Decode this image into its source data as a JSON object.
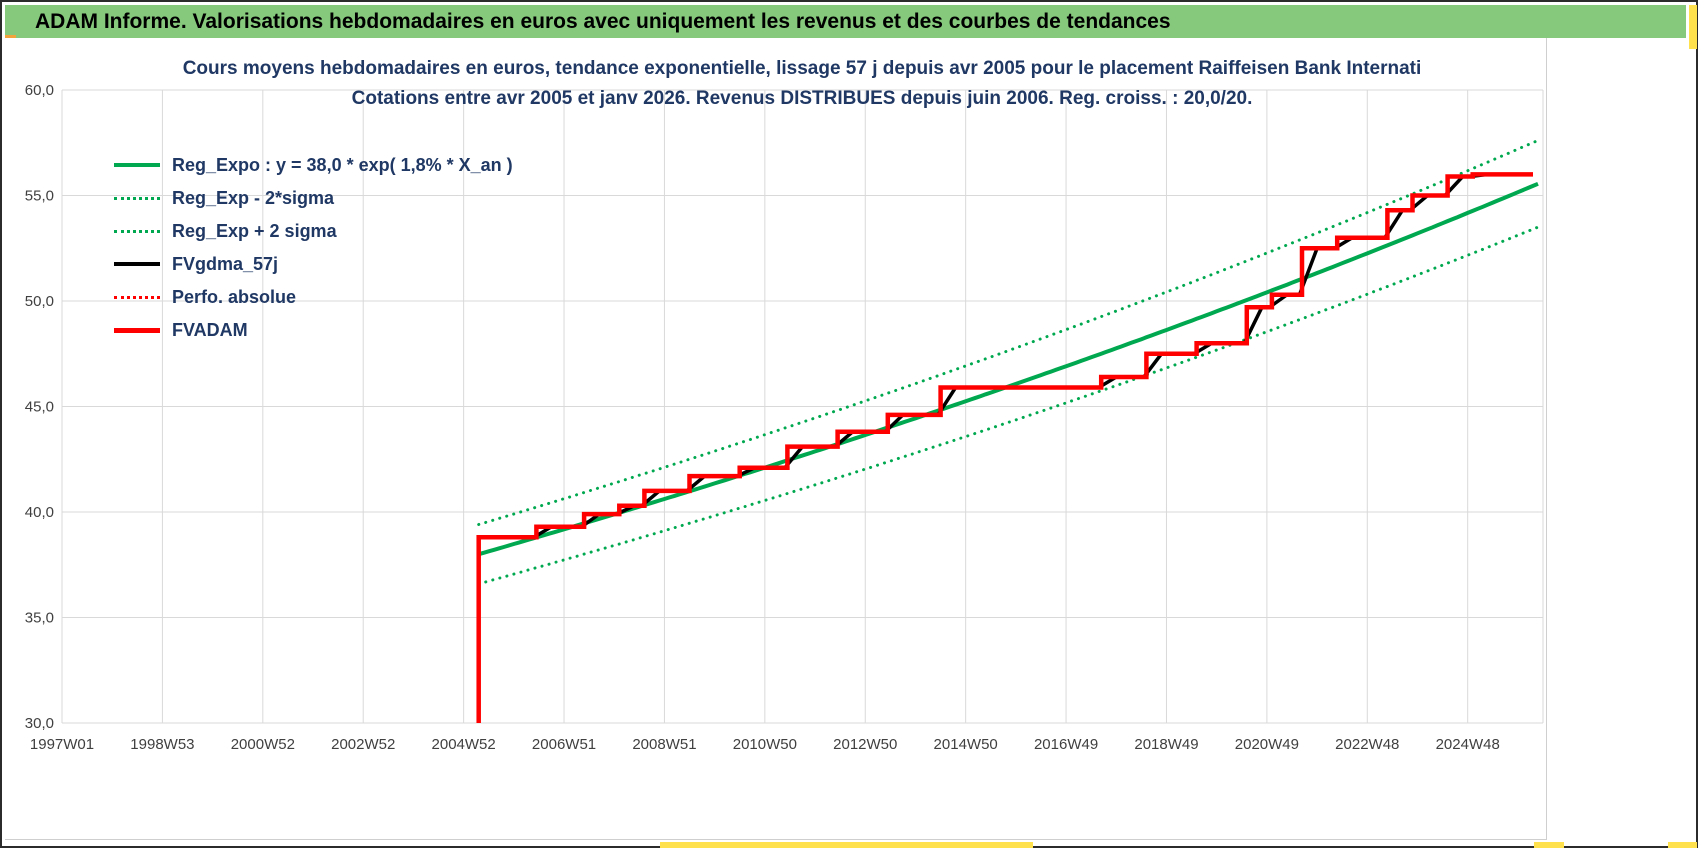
{
  "header": {
    "title": "ADAM Informe. Valorisations hebdomadaires en euros avec uniquement les revenus et des courbes de tendances"
  },
  "colors": {
    "header_bg": "#86c87c",
    "accent_orange": "#f2a33c",
    "accent_yellow": "#ffe14d",
    "green_series": "#00a84f",
    "red_series": "#ff0000",
    "black_series": "#000000",
    "gridline": "#d9d9d9",
    "title_text": "#1f3864",
    "tick_text": "#404040"
  },
  "chart_data": {
    "type": "line",
    "title": "Cours moyens hebdomadaires en euros, tendance exponentielle, lissage 57 j depuis avr 2005 pour le placement Raiffeisen Bank Internati",
    "subtitle": "Cotations entre avr 2005 et janv 2026. Revenus DISTRIBUES depuis juin 2006. Reg. croiss. : 20,0/20.",
    "xlabel": "",
    "ylabel": "",
    "grid": true,
    "legend_position": "top-left",
    "xlim": [
      1997,
      2026.5
    ],
    "ylim": [
      30,
      60
    ],
    "x_ticks": [
      {
        "value": 1997,
        "label": "1997W01"
      },
      {
        "value": 1999,
        "label": "1998W53"
      },
      {
        "value": 2001,
        "label": "2000W52"
      },
      {
        "value": 2003,
        "label": "2002W52"
      },
      {
        "value": 2005,
        "label": "2004W52"
      },
      {
        "value": 2007,
        "label": "2006W51"
      },
      {
        "value": 2009,
        "label": "2008W51"
      },
      {
        "value": 2011,
        "label": "2010W50"
      },
      {
        "value": 2013,
        "label": "2012W50"
      },
      {
        "value": 2015,
        "label": "2014W50"
      },
      {
        "value": 2017,
        "label": "2016W49"
      },
      {
        "value": 2019,
        "label": "2018W49"
      },
      {
        "value": 2021,
        "label": "2020W49"
      },
      {
        "value": 2023,
        "label": "2022W48"
      },
      {
        "value": 2025,
        "label": "2024W48"
      }
    ],
    "y_ticks": [
      {
        "value": 30,
        "label": "30,0"
      },
      {
        "value": 35,
        "label": "35,0"
      },
      {
        "value": 40,
        "label": "40,0"
      },
      {
        "value": 45,
        "label": "45,0"
      },
      {
        "value": 50,
        "label": "50,0"
      },
      {
        "value": 55,
        "label": "55,0"
      },
      {
        "value": 60,
        "label": "60,0"
      }
    ],
    "regression": {
      "base": 38.0,
      "rate_pct": 1.8,
      "x_start": 2005.3,
      "x_end": 2026.45,
      "sigma_band": 0.037
    },
    "steps": [
      [
        2005.3,
        38.8
      ],
      [
        2006.45,
        39.3
      ],
      [
        2007.4,
        39.9
      ],
      [
        2008.1,
        40.3
      ],
      [
        2008.6,
        41.0
      ],
      [
        2009.5,
        41.7
      ],
      [
        2010.5,
        42.1
      ],
      [
        2011.45,
        43.1
      ],
      [
        2012.45,
        43.8
      ],
      [
        2013.45,
        44.6
      ],
      [
        2014.5,
        45.9
      ],
      [
        2017.7,
        46.4
      ],
      [
        2018.6,
        47.5
      ],
      [
        2019.6,
        48.0
      ],
      [
        2020.6,
        49.7
      ],
      [
        2021.1,
        50.3
      ],
      [
        2021.7,
        52.5
      ],
      [
        2022.4,
        53.0
      ],
      [
        2023.4,
        54.3
      ],
      [
        2023.9,
        55.0
      ],
      [
        2024.6,
        55.9
      ],
      [
        2025.1,
        56.0
      ]
    ],
    "steps_x_end": 2026.3,
    "series": [
      {
        "name": "Reg_Expo : y = 38,0 * exp( 1,8% *  X_an )",
        "color": "#00a84f",
        "dash": "solid",
        "width": 4,
        "kind": "exp",
        "factor": 1.0
      },
      {
        "name": "Reg_Exp - 2*sigma",
        "color": "#00a84f",
        "dash": "dotted",
        "width": 3,
        "kind": "exp",
        "factor": 0.963
      },
      {
        "name": "Reg_Exp + 2 sigma",
        "color": "#00a84f",
        "dash": "dotted",
        "width": 3,
        "kind": "exp",
        "factor": 1.037
      },
      {
        "name": "FVgdma_57j",
        "color": "#000000",
        "dash": "solid",
        "width": 3.5,
        "kind": "smooth"
      },
      {
        "name": "Perfo. absolue",
        "color": "#ff0000",
        "dash": "dotted",
        "width": 2.5,
        "kind": "steps"
      },
      {
        "name": "FVADAM",
        "color": "#ff0000",
        "dash": "solid",
        "width": 4.5,
        "kind": "steps",
        "initial_drop": true
      }
    ]
  }
}
